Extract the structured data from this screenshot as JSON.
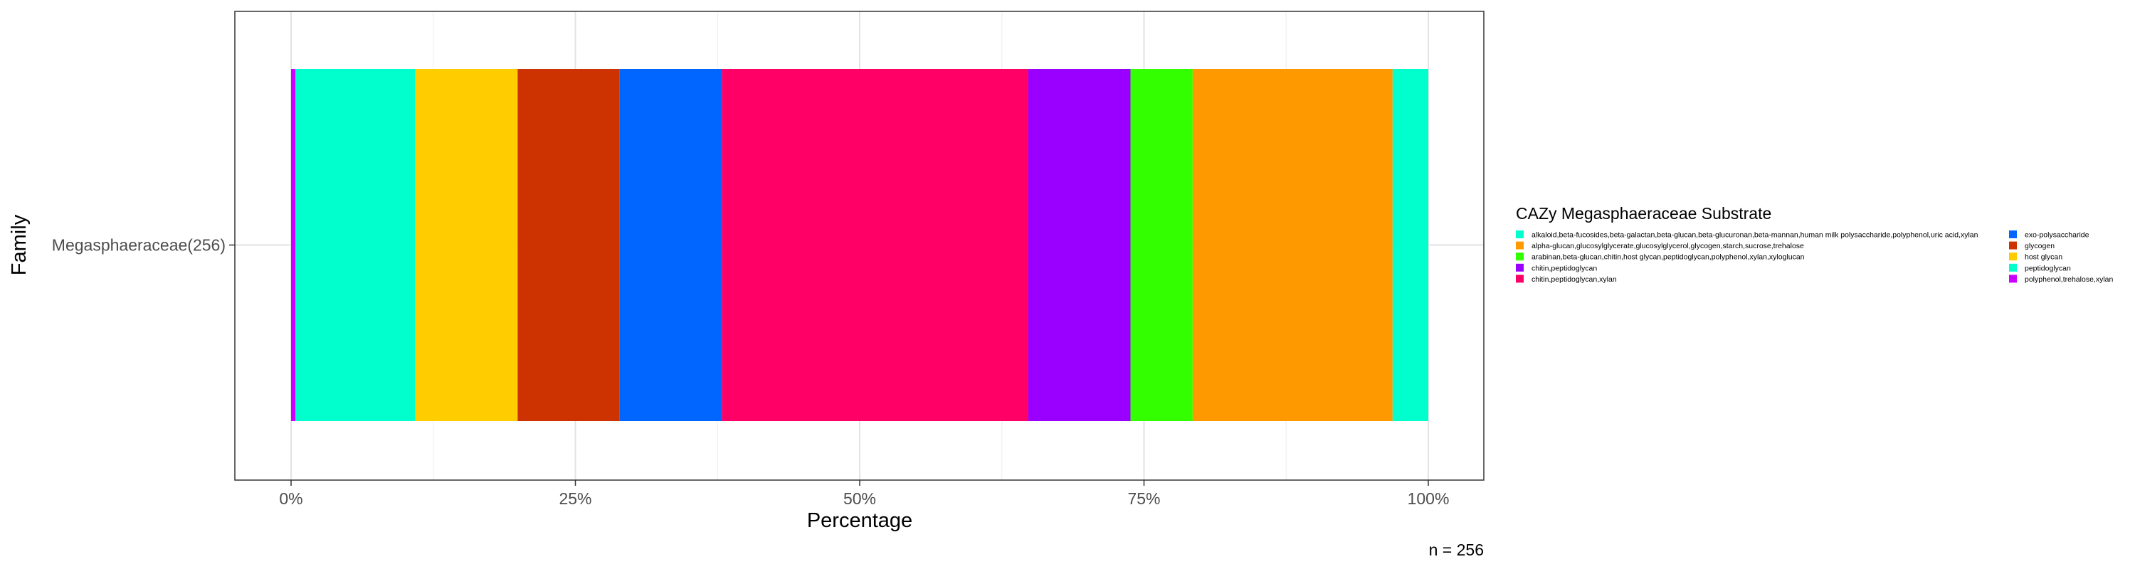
{
  "chart_data": {
    "type": "bar",
    "orientation": "horizontal-stacked",
    "xlabel": "Percentage",
    "ylabel": "Family",
    "xlim": [
      0,
      1
    ],
    "xticks": [
      {
        "value": 0,
        "label": "0%"
      },
      {
        "value": 0.25,
        "label": "25%"
      },
      {
        "value": 0.5,
        "label": "50%"
      },
      {
        "value": 0.75,
        "label": "75%"
      },
      {
        "value": 1,
        "label": "100%"
      }
    ],
    "categories": [
      "Megasphaeraceae(256)"
    ],
    "grid": true,
    "legend": {
      "title": "CAZy Megasphaeraceae Substrate",
      "placement": "right",
      "columns": 2
    },
    "series": [
      {
        "name": "polyphenol,trehalose,xylan",
        "color": "#CC00FF",
        "values": [
          0.0039
        ]
      },
      {
        "name": "peptidoglycan",
        "color": "#00FFCC",
        "values": [
          0.1055
        ]
      },
      {
        "name": "host glycan",
        "color": "#FFCC00",
        "values": [
          0.0898
        ]
      },
      {
        "name": "glycogen",
        "color": "#CC3300",
        "values": [
          0.0898
        ]
      },
      {
        "name": "exo-polysaccharide",
        "color": "#0066FF",
        "values": [
          0.0898
        ]
      },
      {
        "name": "chitin,peptidoglycan,xylan",
        "color": "#FF0066",
        "values": [
          0.2695
        ]
      },
      {
        "name": "chitin,peptidoglycan",
        "color": "#9900FF",
        "values": [
          0.0898
        ]
      },
      {
        "name": "arabinan,beta-glucan,chitin,host glycan,peptidoglycan,polyphenol,xylan,xyloglucan",
        "color": "#33FF00",
        "values": [
          0.0547
        ]
      },
      {
        "name": "alpha-glucan,glucosylglycerate,glucosylglycerol,glycogen,starch,sucrose,trehalose",
        "color": "#FF9900",
        "values": [
          0.1758
        ]
      },
      {
        "name": "alkaloid,beta-fucosides,beta-galactan,beta-glucan,beta-glucuronan,beta-mannan,human milk polysaccharide,polyphenol,uric acid,xylan",
        "color": "#00FFCC",
        "values": [
          0.0314
        ]
      }
    ],
    "legend_order": [
      "alkaloid,beta-fucosides,beta-galactan,beta-glucan,beta-glucuronan,beta-mannan,human milk polysaccharide,polyphenol,uric acid,xylan",
      "alpha-glucan,glucosylglycerate,glucosylglycerol,glycogen,starch,sucrose,trehalose",
      "arabinan,beta-glucan,chitin,host glycan,peptidoglycan,polyphenol,xylan,xyloglucan",
      "chitin,peptidoglycan",
      "chitin,peptidoglycan,xylan",
      "exo-polysaccharide",
      "glycogen",
      "host glycan",
      "peptidoglycan",
      "polyphenol,trehalose,xylan"
    ],
    "caption": "n = 256"
  }
}
